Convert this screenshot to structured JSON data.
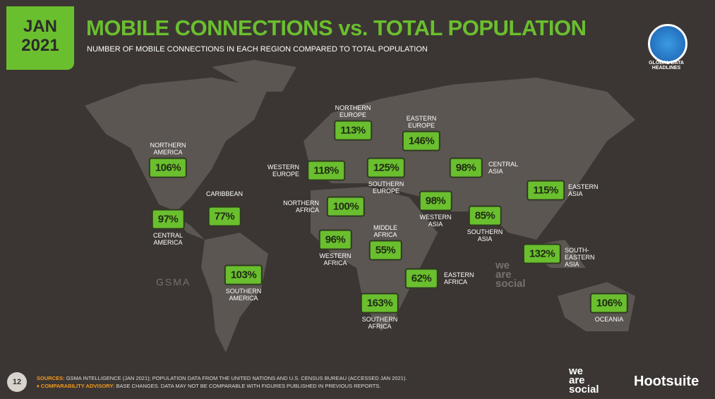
{
  "header": {
    "date": "JAN 2021",
    "title": "MOBILE CONNECTIONS vs. TOTAL POPULATION",
    "subtitle": "NUMBER OF MOBILE CONNECTIONS IN EACH REGION COMPARED TO TOTAL POPULATION",
    "badge": "GLOBAL DATA HEADLINES"
  },
  "regions": [
    {
      "label": "NORTHERN AMERICA",
      "value": "106%"
    },
    {
      "label": "CARIBBEAN",
      "value": "77%"
    },
    {
      "label": "CENTRAL AMERICA",
      "value": "97%"
    },
    {
      "label": "SOUTHERN AMERICA",
      "value": "103%"
    },
    {
      "label": "NORTHERN EUROPE",
      "value": "113%"
    },
    {
      "label": "EASTERN EUROPE",
      "value": "146%"
    },
    {
      "label": "WESTERN EUROPE",
      "value": "118%"
    },
    {
      "label": "SOUTHERN EUROPE",
      "value": "125%"
    },
    {
      "label": "CENTRAL ASIA",
      "value": "98%"
    },
    {
      "label": "EASTERN ASIA",
      "value": "115%"
    },
    {
      "label": "NORTHERN AFRICA",
      "value": "100%"
    },
    {
      "label": "WESTERN ASIA",
      "value": "98%"
    },
    {
      "label": "SOUTHERN ASIA",
      "value": "85%"
    },
    {
      "label": "WESTERN AFRICA",
      "value": "96%"
    },
    {
      "label": "MIDDLE AFRICA",
      "value": "55%"
    },
    {
      "label": "SOUTH-EASTERN ASIA",
      "value": "132%"
    },
    {
      "label": "EASTERN AFRICA",
      "value": "62%"
    },
    {
      "label": "SOUTHERN AFRICA",
      "value": "163%"
    },
    {
      "label": "OCEANIA",
      "value": "106%"
    }
  ],
  "watermarks": {
    "gsma": "GSMA",
    "social": "we are social"
  },
  "footer": {
    "page": "12",
    "sources_label": "SOURCES:",
    "sources": "GSMA INTELLIGENCE (JAN 2021); POPULATION DATA FROM THE UNITED NATIONS AND U.S. CENSUS BUREAU (ACCESSED JAN 2021).",
    "advisory_label": "♦ COMPARABILITY ADVISORY:",
    "advisory": "BASE CHANGES. DATA MAY NOT BE COMPARABLE WITH FIGURES PUBLISHED IN PREVIOUS REPORTS.",
    "logo1": "we are social",
    "logo2": "Hootsuite"
  }
}
